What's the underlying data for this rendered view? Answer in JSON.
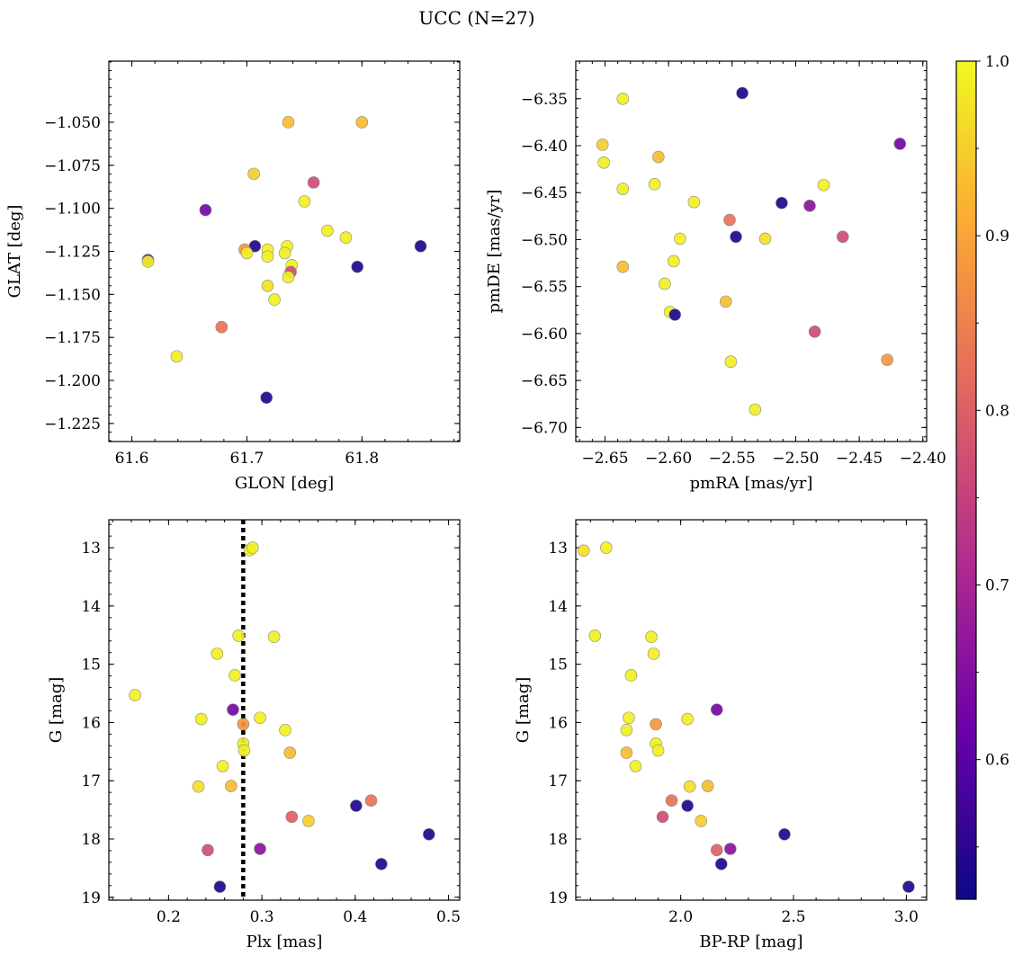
{
  "figure": {
    "title": "UCC (N=27)"
  },
  "colorbar": {
    "min": 0.52,
    "max": 1.0,
    "ticks": [
      0.6,
      0.7,
      0.8,
      0.9,
      1.0
    ],
    "tick_labels": [
      "0.6",
      "0.7",
      "0.8",
      "0.9",
      "1.0"
    ],
    "colormap": "plasma",
    "stops": [
      "#0d0887",
      "#6a00a8",
      "#b12a90",
      "#e16462",
      "#fca636",
      "#f0f921"
    ]
  },
  "chart_data": [
    {
      "type": "scatter",
      "id": "glon-glat",
      "xlabel": "GLON [deg]",
      "ylabel": "GLAT [deg]",
      "xlim": [
        61.58,
        61.885
      ],
      "ylim": [
        -1.2355,
        -1.0145
      ],
      "xticks": [
        61.6,
        61.7,
        61.8
      ],
      "xtick_labels": [
        "61.6",
        "61.7",
        "61.8"
      ],
      "yticks": [
        -1.05,
        -1.075,
        -1.1,
        -1.125,
        -1.15,
        -1.175,
        -1.2,
        -1.225
      ],
      "ytick_labels": [
        "−1.050",
        "−1.075",
        "−1.100",
        "−1.125",
        "−1.150",
        "−1.175",
        "−1.200",
        "−1.225"
      ],
      "points": [
        {
          "x": 61.736,
          "y": -1.05,
          "c": 0.93
        },
        {
          "x": 61.8,
          "y": -1.05,
          "c": 0.93
        },
        {
          "x": 61.706,
          "y": -1.08,
          "c": 0.95
        },
        {
          "x": 61.758,
          "y": -1.085,
          "c": 0.77
        },
        {
          "x": 61.75,
          "y": -1.096,
          "c": 0.99
        },
        {
          "x": 61.664,
          "y": -1.101,
          "c": 0.63
        },
        {
          "x": 61.77,
          "y": -1.113,
          "c": 0.99
        },
        {
          "x": 61.786,
          "y": -1.117,
          "c": 0.99
        },
        {
          "x": 61.707,
          "y": -1.122,
          "c": 0.54
        },
        {
          "x": 61.735,
          "y": -1.122,
          "c": 0.99
        },
        {
          "x": 61.851,
          "y": -1.122,
          "c": 0.54
        },
        {
          "x": 61.698,
          "y": -1.124,
          "c": 0.88
        },
        {
          "x": 61.718,
          "y": -1.124,
          "c": 0.99
        },
        {
          "x": 61.7,
          "y": -1.126,
          "c": 0.99
        },
        {
          "x": 61.733,
          "y": -1.126,
          "c": 0.99
        },
        {
          "x": 61.718,
          "y": -1.128,
          "c": 0.99
        },
        {
          "x": 61.614,
          "y": -1.13,
          "c": 0.63
        },
        {
          "x": 61.614,
          "y": -1.131,
          "c": 0.99
        },
        {
          "x": 61.739,
          "y": -1.133,
          "c": 0.99
        },
        {
          "x": 61.796,
          "y": -1.134,
          "c": 0.54
        },
        {
          "x": 61.738,
          "y": -1.137,
          "c": 0.77
        },
        {
          "x": 61.736,
          "y": -1.14,
          "c": 0.99
        },
        {
          "x": 61.718,
          "y": -1.145,
          "c": 0.97
        },
        {
          "x": 61.724,
          "y": -1.153,
          "c": 0.99
        },
        {
          "x": 61.678,
          "y": -1.169,
          "c": 0.83
        },
        {
          "x": 61.639,
          "y": -1.186,
          "c": 0.99
        },
        {
          "x": 61.717,
          "y": -1.21,
          "c": 0.54
        }
      ]
    },
    {
      "type": "scatter",
      "id": "pmra-pmde",
      "xlabel": "pmRA [mas/yr]",
      "ylabel": "pmDE [mas/yr]",
      "xlim": [
        -2.673,
        -2.397
      ],
      "ylim": [
        -6.715,
        -6.31
      ],
      "xticks": [
        -2.65,
        -2.6,
        -2.55,
        -2.5,
        -2.45,
        -2.4
      ],
      "xtick_labels": [
        "−2.65",
        "−2.60",
        "−2.55",
        "−2.50",
        "−2.45",
        "−2.40"
      ],
      "yticks": [
        -6.35,
        -6.4,
        -6.45,
        -6.5,
        -6.55,
        -6.6,
        -6.65,
        -6.7
      ],
      "ytick_labels": [
        "−6.35",
        "−6.40",
        "−6.45",
        "−6.50",
        "−6.55",
        "−6.60",
        "−6.65",
        "−6.70"
      ],
      "points": [
        {
          "x": -2.542,
          "y": -6.344,
          "c": 0.54
        },
        {
          "x": -2.636,
          "y": -6.35,
          "c": 0.99
        },
        {
          "x": -2.652,
          "y": -6.399,
          "c": 0.95
        },
        {
          "x": -2.418,
          "y": -6.398,
          "c": 0.63
        },
        {
          "x": -2.608,
          "y": -6.412,
          "c": 0.93
        },
        {
          "x": -2.651,
          "y": -6.418,
          "c": 0.99
        },
        {
          "x": -2.611,
          "y": -6.441,
          "c": 0.99
        },
        {
          "x": -2.478,
          "y": -6.442,
          "c": 0.99
        },
        {
          "x": -2.636,
          "y": -6.446,
          "c": 0.99
        },
        {
          "x": -2.58,
          "y": -6.46,
          "c": 0.99
        },
        {
          "x": -2.511,
          "y": -6.461,
          "c": 0.54
        },
        {
          "x": -2.489,
          "y": -6.464,
          "c": 0.66
        },
        {
          "x": -2.552,
          "y": -6.479,
          "c": 0.83
        },
        {
          "x": -2.547,
          "y": -6.497,
          "c": 0.54
        },
        {
          "x": -2.463,
          "y": -6.497,
          "c": 0.77
        },
        {
          "x": -2.591,
          "y": -6.499,
          "c": 0.99
        },
        {
          "x": -2.524,
          "y": -6.499,
          "c": 0.97
        },
        {
          "x": -2.636,
          "y": -6.529,
          "c": 0.93
        },
        {
          "x": -2.596,
          "y": -6.523,
          "c": 0.99
        },
        {
          "x": -2.603,
          "y": -6.547,
          "c": 0.99
        },
        {
          "x": -2.555,
          "y": -6.566,
          "c": 0.93
        },
        {
          "x": -2.599,
          "y": -6.577,
          "c": 0.99
        },
        {
          "x": -2.595,
          "y": -6.58,
          "c": 0.54
        },
        {
          "x": -2.485,
          "y": -6.598,
          "c": 0.77
        },
        {
          "x": -2.428,
          "y": -6.628,
          "c": 0.88
        },
        {
          "x": -2.551,
          "y": -6.63,
          "c": 0.99
        },
        {
          "x": -2.532,
          "y": -6.681,
          "c": 0.99
        }
      ]
    },
    {
      "type": "scatter",
      "id": "plx-g",
      "xlabel": "Plx [mas]",
      "ylabel": "G [mag]",
      "xlim": [
        0.136,
        0.512
      ],
      "ylim": [
        19.05,
        12.52
      ],
      "xticks": [
        0.2,
        0.3,
        0.4,
        0.5
      ],
      "xtick_labels": [
        "0.2",
        "0.3",
        "0.4",
        "0.5"
      ],
      "yticks": [
        13,
        14,
        15,
        16,
        17,
        18,
        19
      ],
      "ytick_labels": [
        "13",
        "14",
        "15",
        "16",
        "17",
        "18",
        "19"
      ],
      "vline": 0.28,
      "points": [
        {
          "x": 0.287,
          "y": 13.04,
          "c": 0.99
        },
        {
          "x": 0.29,
          "y": 13.0,
          "c": 0.99
        },
        {
          "x": 0.275,
          "y": 14.51,
          "c": 0.99
        },
        {
          "x": 0.313,
          "y": 14.53,
          "c": 0.99
        },
        {
          "x": 0.252,
          "y": 14.82,
          "c": 0.99
        },
        {
          "x": 0.271,
          "y": 15.19,
          "c": 0.99
        },
        {
          "x": 0.164,
          "y": 15.53,
          "c": 0.99
        },
        {
          "x": 0.269,
          "y": 15.78,
          "c": 0.63
        },
        {
          "x": 0.298,
          "y": 15.92,
          "c": 0.99
        },
        {
          "x": 0.235,
          "y": 15.94,
          "c": 0.99
        },
        {
          "x": 0.28,
          "y": 16.03,
          "c": 0.88
        },
        {
          "x": 0.325,
          "y": 16.13,
          "c": 0.99
        },
        {
          "x": 0.28,
          "y": 16.36,
          "c": 0.99
        },
        {
          "x": 0.281,
          "y": 16.48,
          "c": 0.99
        },
        {
          "x": 0.33,
          "y": 16.52,
          "c": 0.93
        },
        {
          "x": 0.258,
          "y": 16.75,
          "c": 0.99
        },
        {
          "x": 0.232,
          "y": 17.1,
          "c": 0.97
        },
        {
          "x": 0.267,
          "y": 17.09,
          "c": 0.93
        },
        {
          "x": 0.417,
          "y": 17.34,
          "c": 0.83
        },
        {
          "x": 0.401,
          "y": 17.43,
          "c": 0.54
        },
        {
          "x": 0.332,
          "y": 17.62,
          "c": 0.8
        },
        {
          "x": 0.35,
          "y": 17.69,
          "c": 0.95
        },
        {
          "x": 0.479,
          "y": 17.92,
          "c": 0.54
        },
        {
          "x": 0.298,
          "y": 18.17,
          "c": 0.66
        },
        {
          "x": 0.242,
          "y": 18.19,
          "c": 0.77
        },
        {
          "x": 0.428,
          "y": 18.43,
          "c": 0.54
        },
        {
          "x": 0.255,
          "y": 18.82,
          "c": 0.54
        }
      ]
    },
    {
      "type": "scatter",
      "id": "bprp-g",
      "xlabel": "BP-RP [mag]",
      "ylabel": "G [mag]",
      "xlim": [
        1.535,
        3.09
      ],
      "ylim": [
        19.05,
        12.52
      ],
      "xticks": [
        2.0,
        2.5,
        3.0
      ],
      "xtick_labels": [
        "2.0",
        "2.5",
        "3.0"
      ],
      "yticks": [
        13,
        14,
        15,
        16,
        17,
        18,
        19
      ],
      "ytick_labels": [
        "13",
        "14",
        "15",
        "16",
        "17",
        "18",
        "19"
      ],
      "points": [
        {
          "x": 1.57,
          "y": 13.05,
          "c": 0.97
        },
        {
          "x": 1.67,
          "y": 13.0,
          "c": 0.99
        },
        {
          "x": 1.62,
          "y": 14.51,
          "c": 0.99
        },
        {
          "x": 1.87,
          "y": 14.53,
          "c": 0.99
        },
        {
          "x": 1.88,
          "y": 14.82,
          "c": 0.99
        },
        {
          "x": 1.78,
          "y": 15.19,
          "c": 0.99
        },
        {
          "x": 2.16,
          "y": 15.78,
          "c": 0.63
        },
        {
          "x": 1.77,
          "y": 15.92,
          "c": 0.99
        },
        {
          "x": 2.03,
          "y": 15.94,
          "c": 0.99
        },
        {
          "x": 1.89,
          "y": 16.03,
          "c": 0.88
        },
        {
          "x": 1.76,
          "y": 16.13,
          "c": 0.99
        },
        {
          "x": 1.89,
          "y": 16.36,
          "c": 0.99
        },
        {
          "x": 1.9,
          "y": 16.48,
          "c": 0.99
        },
        {
          "x": 1.76,
          "y": 16.52,
          "c": 0.93
        },
        {
          "x": 1.8,
          "y": 16.75,
          "c": 0.99
        },
        {
          "x": 2.04,
          "y": 17.1,
          "c": 0.97
        },
        {
          "x": 2.12,
          "y": 17.09,
          "c": 0.93
        },
        {
          "x": 1.96,
          "y": 17.34,
          "c": 0.83
        },
        {
          "x": 2.03,
          "y": 17.43,
          "c": 0.54
        },
        {
          "x": 1.92,
          "y": 17.62,
          "c": 0.77
        },
        {
          "x": 2.09,
          "y": 17.69,
          "c": 0.95
        },
        {
          "x": 2.46,
          "y": 17.92,
          "c": 0.54
        },
        {
          "x": 2.22,
          "y": 18.17,
          "c": 0.66
        },
        {
          "x": 2.16,
          "y": 18.19,
          "c": 0.8
        },
        {
          "x": 2.18,
          "y": 18.43,
          "c": 0.54
        },
        {
          "x": 3.01,
          "y": 18.82,
          "c": 0.54
        }
      ]
    }
  ]
}
